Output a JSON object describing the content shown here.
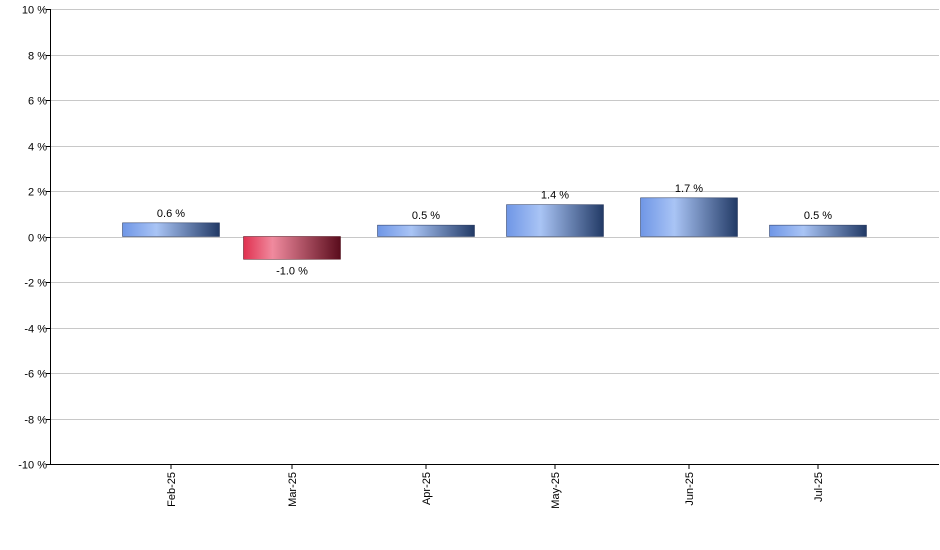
{
  "chart_data": {
    "type": "bar",
    "title": "",
    "xlabel": "",
    "ylabel": "",
    "categories": [
      "Feb-25",
      "Mar-25",
      "Apr-25",
      "May-25",
      "Jun-25",
      "Jul-25"
    ],
    "values": [
      0.6,
      -1.0,
      0.5,
      1.4,
      1.7,
      0.5
    ],
    "data_labels": [
      "0.6 %",
      "-1.0 %",
      "0.5 %",
      "1.4 %",
      "1.7 %",
      "0.5 %"
    ],
    "ylim": [
      -10,
      10
    ],
    "yticks": [
      10,
      8,
      6,
      4,
      2,
      0,
      -2,
      -4,
      -6,
      -8,
      -10
    ],
    "ytick_labels": [
      "10 %",
      "8 %",
      "6 %",
      "4 %",
      "2 %",
      "0 %",
      "-2 %",
      "-4 %",
      "-6 %",
      "-8 %",
      "-10 %"
    ],
    "grid": true,
    "colors": {
      "positive_light": "#a9c4f5",
      "positive_mid": "#6f96e6",
      "positive_dark": "#223a66",
      "negative_light": "#f08a9e",
      "negative_mid": "#e0304f",
      "negative_dark": "#5a0c1c",
      "grid": "#c8c8c8",
      "axis": "#000000"
    }
  }
}
